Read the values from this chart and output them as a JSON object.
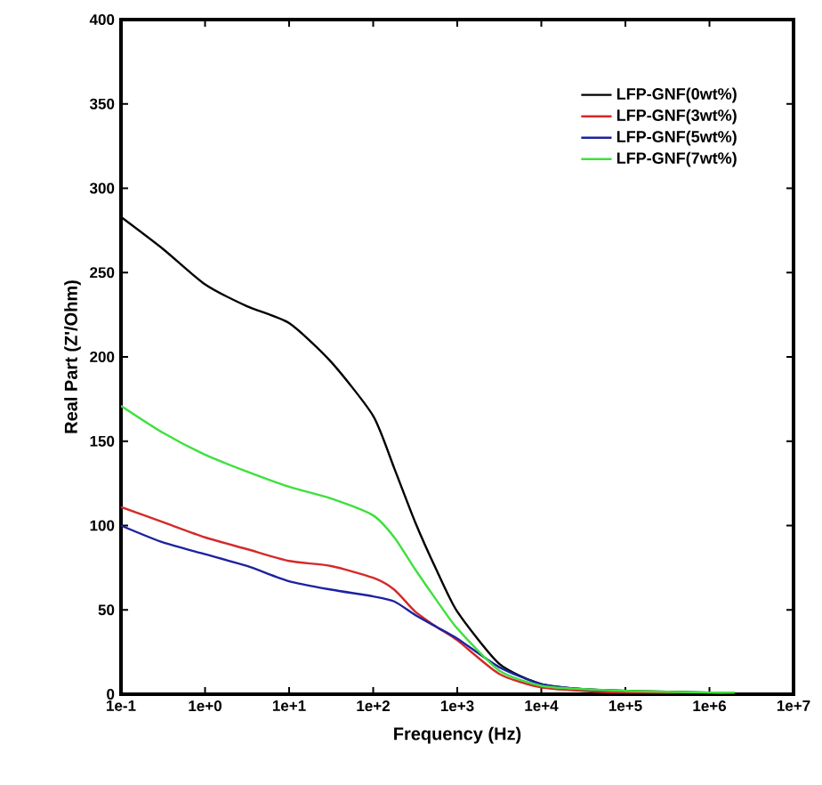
{
  "chart_data": {
    "type": "line",
    "xlabel": "Frequency (Hz)",
    "ylabel": "Real Part (Z'/Ohm)",
    "log": "x",
    "xlim": [
      0.1,
      10000000
    ],
    "ylim": [
      0,
      400
    ],
    "xticks": [
      {
        "value": 0.1,
        "label": "1e-1"
      },
      {
        "value": 1,
        "label": "1e+0"
      },
      {
        "value": 10,
        "label": "1e+1"
      },
      {
        "value": 100,
        "label": "1e+2"
      },
      {
        "value": 1000,
        "label": "1e+3"
      },
      {
        "value": 10000,
        "label": "1e+4"
      },
      {
        "value": 100000,
        "label": "1e+5"
      },
      {
        "value": 1000000,
        "label": "1e+6"
      },
      {
        "value": 10000000,
        "label": "1e+7"
      }
    ],
    "yticks": [
      0,
      50,
      100,
      150,
      200,
      250,
      300,
      350,
      400
    ],
    "x": [
      0.1,
      0.316,
      1,
      3.16,
      10,
      31.6,
      100,
      178,
      316,
      562,
      1000,
      3162,
      10000,
      31623,
      100000,
      1000000,
      2000000
    ],
    "legend": "top right",
    "grid": false,
    "marker": "none",
    "line_style": "solid",
    "series": [
      {
        "name": "LFP-GNF(0wt%)",
        "color": "#000000",
        "values": [
          283,
          264,
          243,
          230,
          220,
          197,
          165,
          134,
          102,
          74,
          49,
          18,
          6,
          3,
          2,
          1,
          1
        ]
      },
      {
        "name": "LFP-GNF(3wt%)",
        "color": "#d42a2a",
        "values": [
          111,
          102,
          93,
          86,
          79,
          76,
          69,
          62,
          49,
          40,
          32,
          12,
          4,
          2,
          1,
          1,
          1
        ]
      },
      {
        "name": "LFP-GNF(5wt%)",
        "color": "#1c22a0",
        "values": [
          100,
          90,
          83,
          76,
          67,
          62,
          58,
          55,
          47,
          40,
          33,
          16,
          6,
          3,
          2,
          null,
          null
        ]
      },
      {
        "name": "LFP-GNF(7wt%)",
        "color": "#3ee03e",
        "values": [
          171,
          155,
          142,
          132,
          123,
          116,
          106,
          93,
          74,
          56,
          39,
          14,
          5,
          3,
          2,
          1,
          1
        ]
      }
    ]
  }
}
